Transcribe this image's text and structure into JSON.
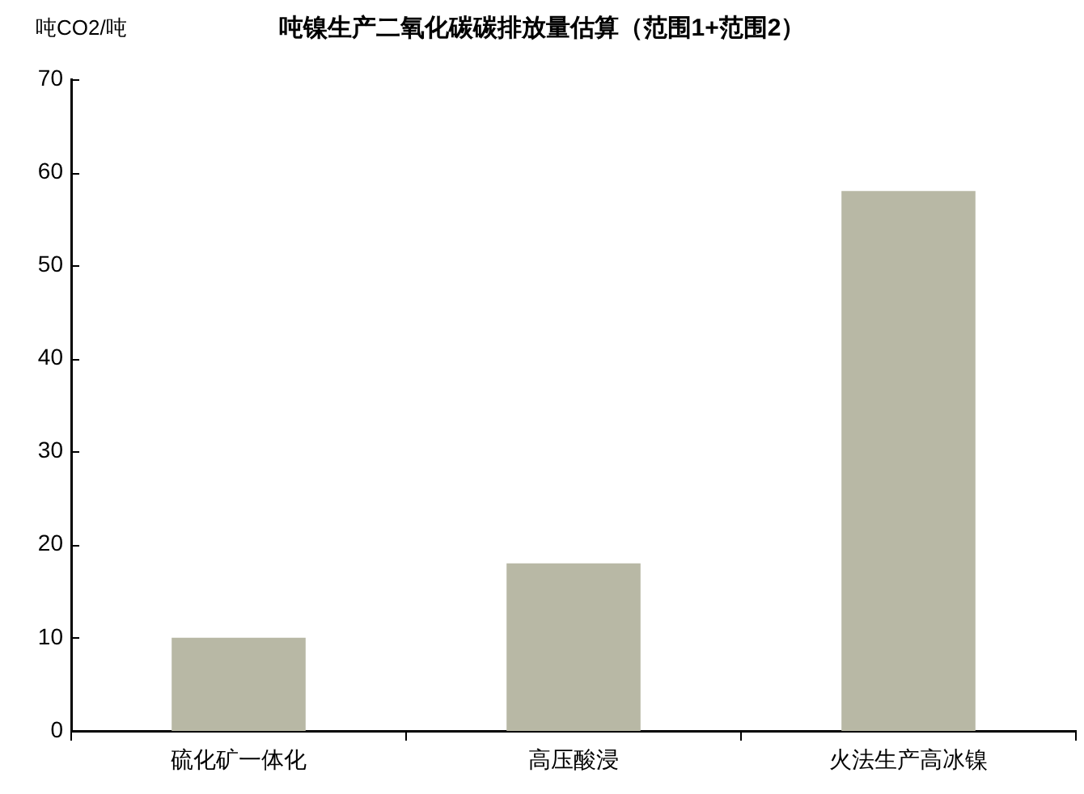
{
  "chart_data": {
    "type": "bar",
    "title": "吨镍生产二氧化碳碳排放量估算（范围1+范围2）",
    "ylabel": "吨CO2/吨",
    "categories": [
      "硫化矿一体化",
      "高压酸浸",
      "火法生产高冰镍"
    ],
    "values": [
      10,
      18,
      58
    ],
    "color": "#b8b8a5",
    "ylim": [
      0,
      70
    ],
    "yticks": [
      0,
      10,
      20,
      30,
      40,
      50,
      60,
      70
    ],
    "grid": false,
    "legend": false
  }
}
